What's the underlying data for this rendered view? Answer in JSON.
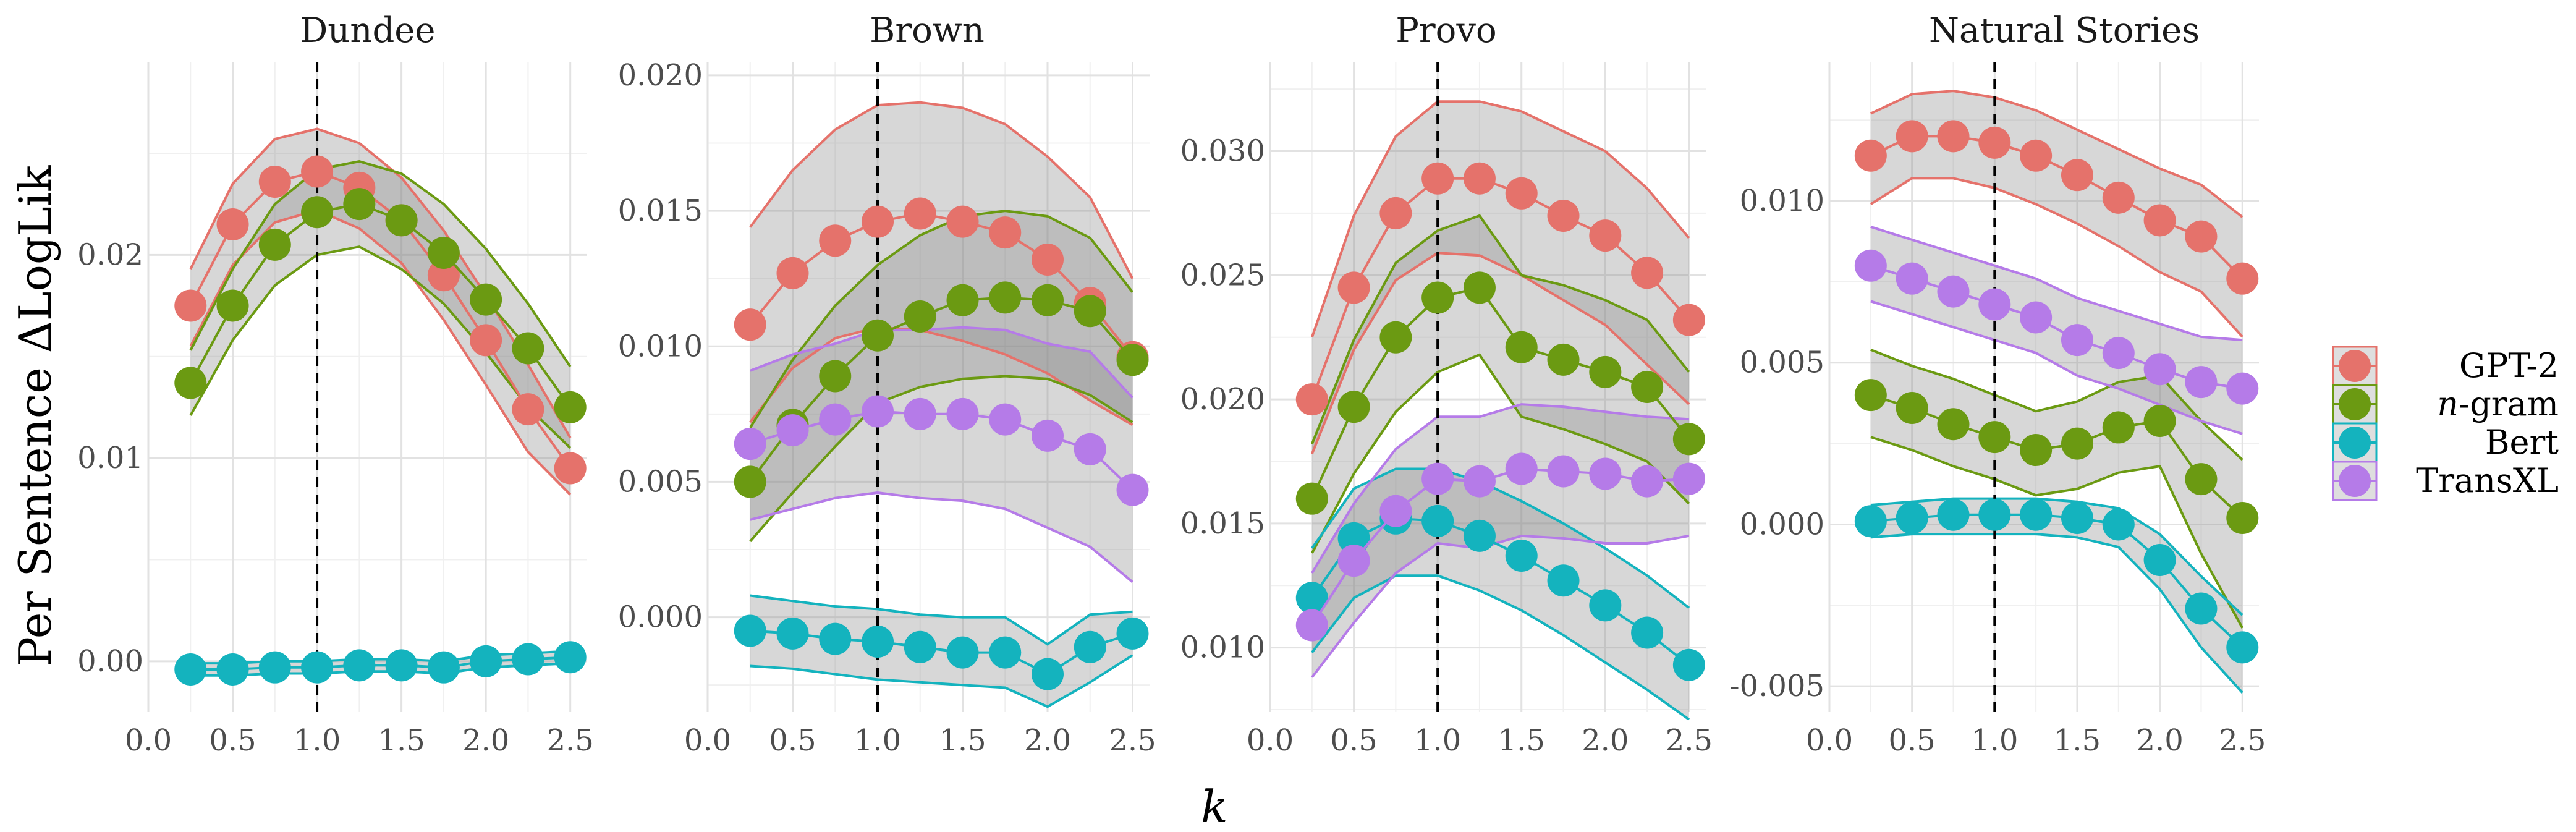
{
  "chart_data": {
    "type": "line",
    "xlabel": "k",
    "ylabel": "Per Sentence ΔLogLik",
    "x_ticks": [
      "0.0",
      "0.5",
      "1.0",
      "1.5",
      "2.0",
      "2.5"
    ],
    "x_values": [
      0.25,
      0.5,
      0.75,
      1.0,
      1.25,
      1.5,
      1.75,
      2.0,
      2.25,
      2.5
    ],
    "reference_line_x": 1.0,
    "grid": true,
    "legend_position": "right",
    "legend": [
      {
        "name": "GPT-2",
        "prefix": "",
        "suffix": "",
        "color": "#E5726B"
      },
      {
        "name": "n-gram",
        "prefix": "n",
        "suffix": "-gram",
        "color": "#6B9A12"
      },
      {
        "name": "Bert",
        "prefix": "",
        "suffix": "",
        "color": "#14B3BE"
      },
      {
        "name": "TransXL",
        "prefix": "",
        "suffix": "",
        "color": "#B57BE8"
      }
    ],
    "panels": [
      {
        "title": "Dundee",
        "ylim": [
          -0.0025,
          0.0295
        ],
        "y_ticks": [
          0.0,
          0.01,
          0.02
        ],
        "y_tick_labels": [
          "0.00",
          "0.01",
          "0.02"
        ],
        "series": [
          {
            "name": "GPT-2",
            "values": [
              0.0175,
              0.0215,
              0.0236,
              0.0241,
              0.0233,
              0.0217,
              0.019,
              0.0158,
              0.0124,
              0.0095
            ],
            "lower": [
              0.0155,
              0.0195,
              0.0216,
              0.0222,
              0.0213,
              0.0196,
              0.0168,
              0.0136,
              0.0103,
              0.0082
            ],
            "upper": [
              0.0193,
              0.0235,
              0.0257,
              0.0262,
              0.0255,
              0.0238,
              0.0212,
              0.018,
              0.0146,
              0.011
            ]
          },
          {
            "name": "n-gram",
            "values": [
              0.0137,
              0.0175,
              0.0205,
              0.0221,
              0.0225,
              0.0217,
              0.0201,
              0.0178,
              0.0154,
              0.0125
            ],
            "lower": [
              0.0121,
              0.0158,
              0.0185,
              0.02,
              0.0204,
              0.0193,
              0.0176,
              0.0152,
              0.0125,
              0.0105
            ],
            "upper": [
              0.0153,
              0.0193,
              0.0225,
              0.0242,
              0.0246,
              0.024,
              0.0225,
              0.0203,
              0.0176,
              0.0145
            ]
          },
          {
            "name": "Bert",
            "values": [
              -0.0004,
              -0.0004,
              -0.0003,
              -0.0003,
              -0.0002,
              -0.0002,
              -0.0003,
              0.0,
              0.0001,
              0.0002
            ],
            "lower": [
              -0.0007,
              -0.0007,
              -0.0006,
              -0.0006,
              -0.0005,
              -0.0005,
              -0.0006,
              -0.0003,
              -0.0002,
              -0.0001
            ],
            "upper": [
              -0.0001,
              -0.0001,
              0.0,
              0.0,
              0.0001,
              0.0001,
              0.0,
              0.0003,
              0.0004,
              0.0005
            ]
          }
        ]
      },
      {
        "title": "Brown",
        "ylim": [
          -0.0035,
          0.0205
        ],
        "y_ticks": [
          0.0,
          0.005,
          0.01,
          0.015,
          0.02
        ],
        "y_tick_labels": [
          "0.000",
          "0.005",
          "0.010",
          "0.015",
          "0.020"
        ],
        "series": [
          {
            "name": "GPT-2",
            "values": [
              0.0108,
              0.0127,
              0.0139,
              0.0146,
              0.0149,
              0.0146,
              0.0142,
              0.0132,
              0.0116,
              0.0096
            ],
            "lower": [
              0.0072,
              0.0092,
              0.0103,
              0.0107,
              0.0106,
              0.0102,
              0.0097,
              0.009,
              0.008,
              0.0071
            ],
            "upper": [
              0.0144,
              0.0165,
              0.018,
              0.0189,
              0.019,
              0.0188,
              0.0182,
              0.017,
              0.0155,
              0.0125
            ]
          },
          {
            "name": "n-gram",
            "values": [
              0.005,
              0.0071,
              0.0089,
              0.0104,
              0.0111,
              0.0117,
              0.0118,
              0.0117,
              0.0113,
              0.0095
            ],
            "lower": [
              0.0028,
              0.0046,
              0.0063,
              0.0079,
              0.0085,
              0.0088,
              0.0089,
              0.0088,
              0.0082,
              0.0072
            ],
            "upper": [
              0.007,
              0.0095,
              0.0115,
              0.013,
              0.0141,
              0.0148,
              0.015,
              0.0148,
              0.014,
              0.012
            ]
          },
          {
            "name": "Bert",
            "values": [
              -0.0005,
              -0.0006,
              -0.0008,
              -0.0009,
              -0.0011,
              -0.0013,
              -0.0013,
              -0.0021,
              -0.0011,
              -0.0006
            ],
            "lower": [
              -0.0018,
              -0.0019,
              -0.0021,
              -0.0023,
              -0.0024,
              -0.0025,
              -0.0026,
              -0.0033,
              -0.0024,
              -0.0014
            ],
            "upper": [
              0.0008,
              0.0006,
              0.0004,
              0.0003,
              0.0001,
              0.0,
              0.0,
              -0.001,
              0.0001,
              0.0002
            ]
          },
          {
            "name": "TransXL",
            "values": [
              0.0064,
              0.0069,
              0.0073,
              0.0076,
              0.0075,
              0.0075,
              0.0073,
              0.0067,
              0.0062,
              0.0047
            ],
            "lower": [
              0.0036,
              0.004,
              0.0044,
              0.0046,
              0.0044,
              0.0043,
              0.004,
              0.0033,
              0.0026,
              0.0013
            ],
            "upper": [
              0.0091,
              0.0097,
              0.0101,
              0.0106,
              0.0106,
              0.0107,
              0.0106,
              0.0101,
              0.0098,
              0.0081
            ]
          }
        ]
      },
      {
        "title": "Provo",
        "ylim": [
          0.0074,
          0.0336
        ],
        "y_ticks": [
          0.01,
          0.015,
          0.02,
          0.025,
          0.03
        ],
        "y_tick_labels": [
          "0.010",
          "0.015",
          "0.020",
          "0.025",
          "0.030"
        ],
        "series": [
          {
            "name": "GPT-2",
            "values": [
              0.02,
              0.0245,
              0.0275,
              0.0289,
              0.0289,
              0.0283,
              0.0274,
              0.0266,
              0.0251,
              0.0232
            ],
            "lower": [
              0.0178,
              0.022,
              0.0248,
              0.0259,
              0.0258,
              0.025,
              0.024,
              0.023,
              0.0214,
              0.0198
            ],
            "upper": [
              0.0225,
              0.0274,
              0.0306,
              0.032,
              0.032,
              0.0316,
              0.0308,
              0.03,
              0.0285,
              0.0265
            ]
          },
          {
            "name": "n-gram",
            "values": [
              0.016,
              0.0197,
              0.0225,
              0.0241,
              0.0245,
              0.0221,
              0.0216,
              0.0211,
              0.0205,
              0.0184
            ],
            "lower": [
              0.0138,
              0.017,
              0.0195,
              0.0211,
              0.0218,
              0.0193,
              0.0188,
              0.0182,
              0.0175,
              0.0158
            ],
            "upper": [
              0.0182,
              0.0224,
              0.0255,
              0.0268,
              0.0274,
              0.025,
              0.0246,
              0.024,
              0.0232,
              0.0211
            ]
          },
          {
            "name": "Bert",
            "values": [
              0.012,
              0.0144,
              0.0152,
              0.0151,
              0.0145,
              0.0137,
              0.0127,
              0.0117,
              0.0106,
              0.0093
            ],
            "lower": [
              0.0098,
              0.012,
              0.0129,
              0.0129,
              0.0123,
              0.0115,
              0.0105,
              0.0094,
              0.0083,
              0.0071
            ],
            "upper": [
              0.014,
              0.0164,
              0.0172,
              0.0172,
              0.0167,
              0.0159,
              0.015,
              0.014,
              0.0129,
              0.0116
            ]
          },
          {
            "name": "TransXL",
            "values": [
              0.0109,
              0.0135,
              0.0155,
              0.0168,
              0.0167,
              0.0172,
              0.0171,
              0.017,
              0.0167,
              0.0168
            ],
            "lower": [
              0.0088,
              0.011,
              0.013,
              0.0142,
              0.014,
              0.0145,
              0.0144,
              0.0142,
              0.0142,
              0.0145
            ],
            "upper": [
              0.013,
              0.0158,
              0.018,
              0.0193,
              0.0193,
              0.0198,
              0.0197,
              0.0195,
              0.0193,
              0.0192
            ]
          }
        ]
      },
      {
        "title": "Natural Stories",
        "ylim": [
          -0.0058,
          0.0143
        ],
        "y_ticks": [
          -0.005,
          0.0,
          0.005,
          0.01
        ],
        "y_tick_labels": [
          "-0.005",
          "0.000",
          "0.005",
          "0.010"
        ],
        "series": [
          {
            "name": "GPT-2",
            "values": [
              0.0114,
              0.012,
              0.012,
              0.0118,
              0.0114,
              0.0108,
              0.0101,
              0.0094,
              0.0089,
              0.0076
            ],
            "lower": [
              0.0099,
              0.0107,
              0.0107,
              0.0104,
              0.0099,
              0.0093,
              0.0086,
              0.0078,
              0.0072,
              0.0058
            ],
            "upper": [
              0.0127,
              0.0133,
              0.0134,
              0.0132,
              0.0128,
              0.0122,
              0.0116,
              0.011,
              0.0105,
              0.0095
            ]
          },
          {
            "name": "n-gram",
            "values": [
              0.004,
              0.0036,
              0.0031,
              0.0027,
              0.0023,
              0.0025,
              0.003,
              0.0032,
              0.0014,
              0.0002
            ],
            "lower": [
              0.0027,
              0.0023,
              0.0018,
              0.0014,
              0.0009,
              0.0011,
              0.0016,
              0.0018,
              -0.0009,
              -0.0032
            ],
            "upper": [
              0.0054,
              0.0049,
              0.0045,
              0.004,
              0.0035,
              0.0038,
              0.0044,
              0.0046,
              0.0032,
              0.002
            ]
          },
          {
            "name": "Bert",
            "values": [
              0.0001,
              0.0002,
              0.0003,
              0.0003,
              0.0003,
              0.0002,
              0.0,
              -0.0011,
              -0.0026,
              -0.0038
            ],
            "lower": [
              -0.0004,
              -0.0003,
              -0.0003,
              -0.0003,
              -0.0003,
              -0.0004,
              -0.0007,
              -0.002,
              -0.0038,
              -0.0052
            ],
            "upper": [
              0.0006,
              0.0007,
              0.0008,
              0.0008,
              0.0008,
              0.0007,
              0.0005,
              -0.0003,
              -0.0016,
              -0.0028
            ]
          },
          {
            "name": "TransXL",
            "values": [
              0.008,
              0.0076,
              0.0072,
              0.0068,
              0.0064,
              0.0057,
              0.0053,
              0.0048,
              0.0044,
              0.0042
            ],
            "lower": [
              0.0069,
              0.0065,
              0.0061,
              0.0057,
              0.0053,
              0.0046,
              0.0042,
              0.0037,
              0.0032,
              0.0028
            ],
            "upper": [
              0.0092,
              0.0088,
              0.0084,
              0.008,
              0.0076,
              0.007,
              0.0066,
              0.0062,
              0.0058,
              0.0057
            ]
          }
        ]
      }
    ]
  }
}
